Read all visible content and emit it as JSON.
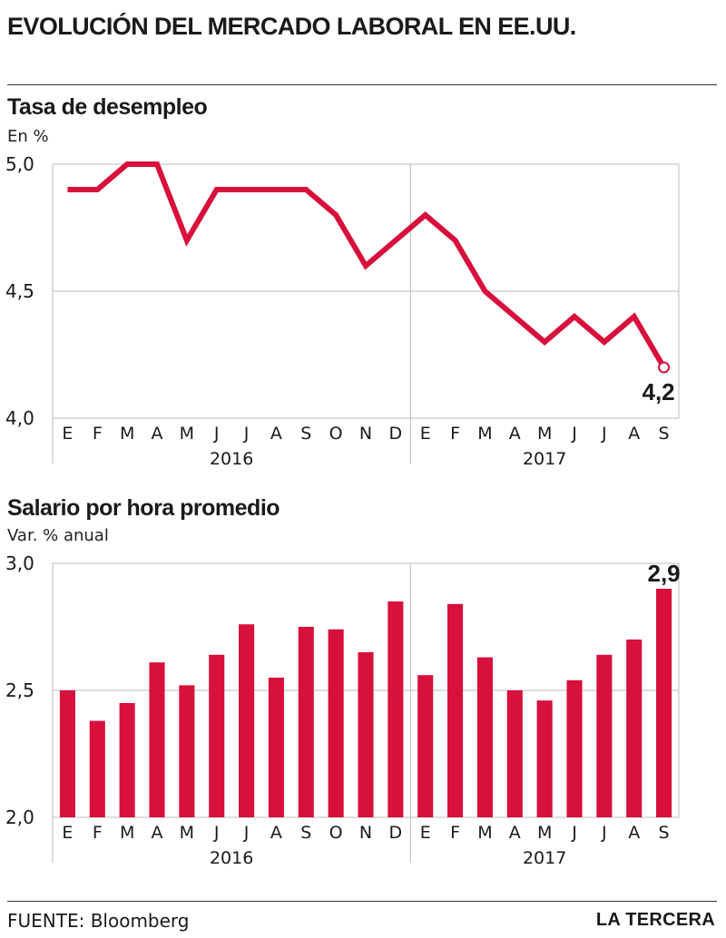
{
  "title": "EVOLUCIÓN DEL MERCADO LABORAL EN EE.UU.",
  "source_label": "FUENTE:",
  "source_value": "Bloomberg",
  "brand": "LA TERCERA",
  "colors": {
    "series": "#d8103c",
    "grid": "#bdbdbd",
    "text": "#1a1a1a"
  },
  "chart_data": [
    {
      "type": "line",
      "title": "Tasa de desempleo",
      "subtitle": "En %",
      "categories": [
        "E",
        "F",
        "M",
        "A",
        "M",
        "J",
        "J",
        "A",
        "S",
        "O",
        "N",
        "D",
        "E",
        "F",
        "M",
        "A",
        "M",
        "J",
        "J",
        "A",
        "S"
      ],
      "year_groups": [
        {
          "label": "2016",
          "count": 12
        },
        {
          "label": "2017",
          "count": 9
        }
      ],
      "values": [
        4.9,
        4.9,
        5.0,
        5.0,
        4.7,
        4.9,
        4.9,
        4.9,
        4.9,
        4.8,
        4.6,
        4.7,
        4.8,
        4.7,
        4.5,
        4.4,
        4.3,
        4.4,
        4.3,
        4.4,
        4.2
      ],
      "yticks": [
        "5,0",
        "4,5",
        "4,0"
      ],
      "ytick_values": [
        5.0,
        4.5,
        4.0
      ],
      "ylim": [
        4.0,
        5.0
      ],
      "annotation": "4,2",
      "grid": true
    },
    {
      "type": "bar",
      "title": "Salario por hora promedio",
      "subtitle": "Var. % anual",
      "categories": [
        "E",
        "F",
        "M",
        "A",
        "M",
        "J",
        "J",
        "A",
        "S",
        "O",
        "N",
        "D",
        "E",
        "F",
        "M",
        "A",
        "M",
        "J",
        "J",
        "A",
        "S"
      ],
      "year_groups": [
        {
          "label": "2016",
          "count": 12
        },
        {
          "label": "2017",
          "count": 9
        }
      ],
      "values": [
        2.5,
        2.38,
        2.45,
        2.61,
        2.52,
        2.64,
        2.76,
        2.55,
        2.75,
        2.74,
        2.65,
        2.85,
        2.56,
        2.84,
        2.63,
        2.5,
        2.46,
        2.54,
        2.64,
        2.7,
        2.9
      ],
      "yticks": [
        "3,0",
        "2,5",
        "2,0"
      ],
      "ytick_values": [
        3.0,
        2.5,
        2.0
      ],
      "ylim": [
        2.0,
        3.0
      ],
      "annotation": "2,9",
      "grid": true
    }
  ]
}
